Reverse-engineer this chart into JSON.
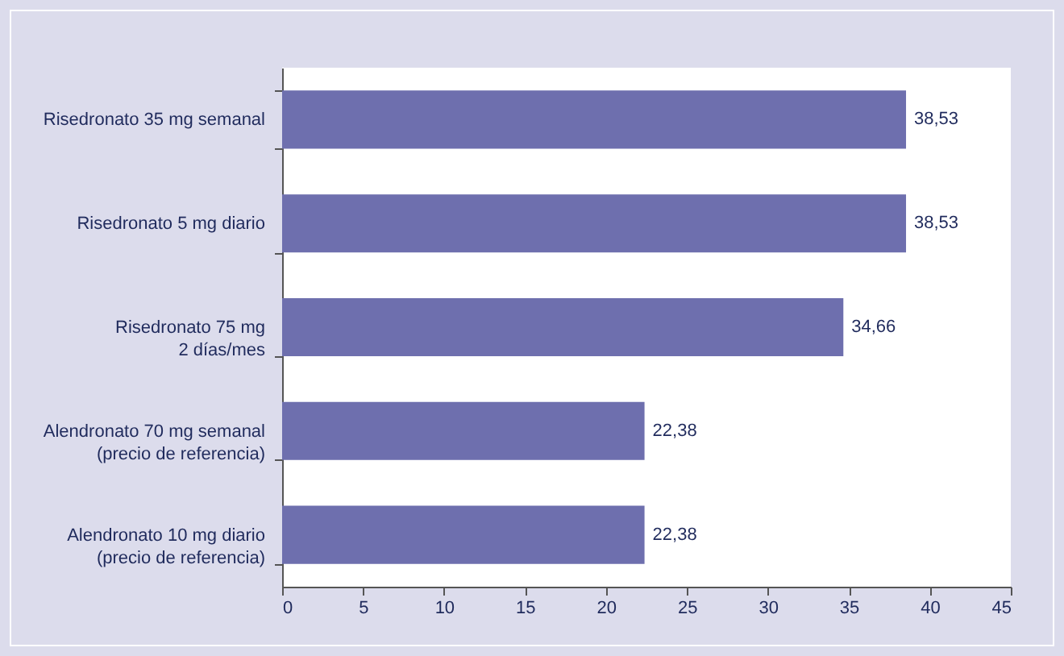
{
  "chart_data": {
    "type": "bar",
    "orientation": "horizontal",
    "categories": [
      "Risedronato 35 mg semanal",
      "Risedronato 5 mg diario",
      "Risedronato 75 mg\n2 días/mes",
      "Alendronato 70 mg semanal\n(precio de referencia)",
      "Alendronato 10 mg diario\n(precio de referencia)"
    ],
    "values": [
      38.53,
      38.53,
      34.66,
      22.38,
      22.38
    ],
    "value_labels": [
      "38,53",
      "38,53",
      "34,66",
      "22,38",
      "22,38"
    ],
    "color": "#6e6fae",
    "xlim": [
      0,
      45
    ],
    "xticks": [
      0,
      5,
      10,
      15,
      20,
      25,
      30,
      35,
      40,
      45
    ],
    "grid": false
  }
}
